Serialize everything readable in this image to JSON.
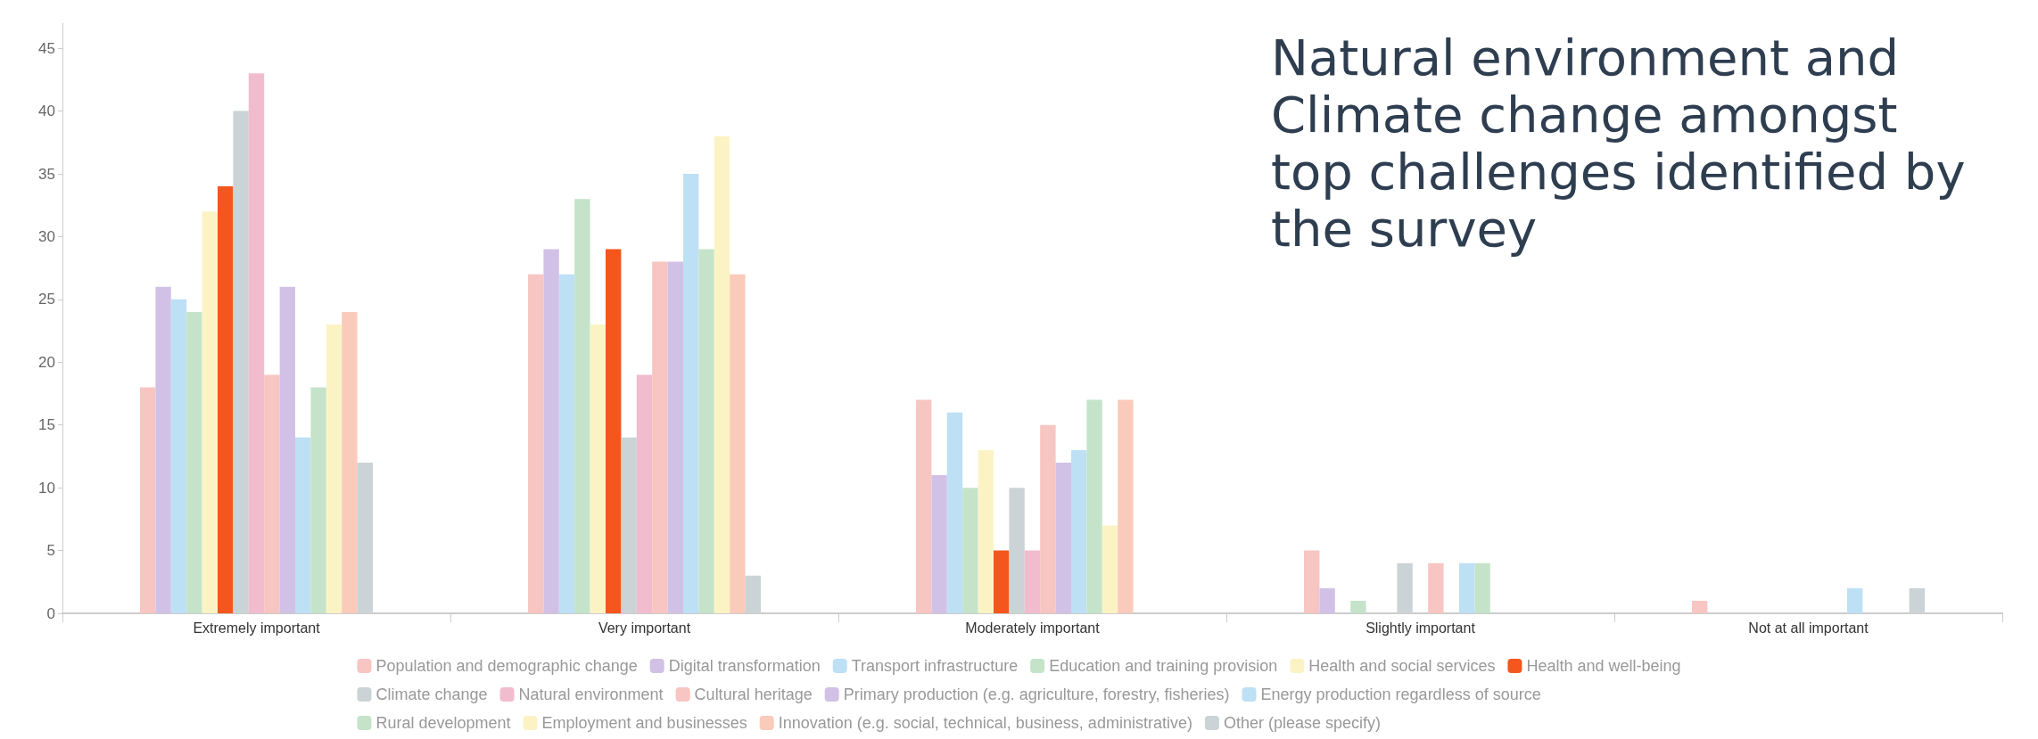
{
  "chart_data": {
    "type": "bar",
    "title": "Natural environment and Climate change amongst top challenges identified by the survey",
    "categories": [
      "Extremely important",
      "Very important",
      "Moderately important",
      "Slightly important",
      "Not at all important"
    ],
    "series": [
      {
        "name": "Population and demographic change",
        "color": "#f7c5c2",
        "values": [
          18,
          27,
          17,
          5,
          1
        ]
      },
      {
        "name": "Digital transformation",
        "color": "#d2c1e6",
        "values": [
          26,
          29,
          11,
          2,
          0
        ]
      },
      {
        "name": "Transport infrastructure",
        "color": "#bde0f5",
        "values": [
          25,
          27,
          16,
          0,
          0
        ]
      },
      {
        "name": "Education and training provision",
        "color": "#c5e3c9",
        "values": [
          24,
          33,
          10,
          1,
          0
        ]
      },
      {
        "name": "Health and social services",
        "color": "#fcf3c5",
        "values": [
          32,
          23,
          13,
          0,
          0
        ]
      },
      {
        "name": "Health and well-being",
        "color": "#f4561d",
        "values": [
          34,
          29,
          5,
          0,
          0
        ]
      },
      {
        "name": "Climate change",
        "color": "#cbd3d6",
        "values": [
          40,
          14,
          10,
          4,
          0
        ]
      },
      {
        "name": "Natural environment",
        "color": "#f2bccf",
        "values": [
          43,
          19,
          5,
          0,
          0
        ]
      },
      {
        "name": "Cultural heritage",
        "color": "#f7c5c2",
        "values": [
          19,
          28,
          15,
          4,
          0
        ]
      },
      {
        "name": "Primary production (e.g. agriculture, forestry, fisheries)",
        "color": "#d2c1e6",
        "values": [
          26,
          28,
          12,
          0,
          0
        ]
      },
      {
        "name": "Energy production regardless of source",
        "color": "#bde0f5",
        "values": [
          14,
          35,
          13,
          4,
          2
        ]
      },
      {
        "name": "Rural development",
        "color": "#c5e3c9",
        "values": [
          18,
          29,
          17,
          4,
          0
        ]
      },
      {
        "name": "Employment and businesses",
        "color": "#fcf3c5",
        "values": [
          23,
          38,
          7,
          0,
          0
        ]
      },
      {
        "name": "Innovation (e.g. social, technical, business, administrative)",
        "color": "#facbba",
        "values": [
          24,
          27,
          17,
          0,
          0
        ]
      },
      {
        "name": "Other (please specify)",
        "color": "#cbd3d6",
        "values": [
          12,
          3,
          0,
          0,
          2
        ]
      }
    ],
    "ylim": [
      0,
      47
    ],
    "yticks": [
      0,
      5,
      10,
      15,
      20,
      25,
      30,
      35,
      40,
      45
    ],
    "grid": false,
    "legend": "bottom"
  }
}
